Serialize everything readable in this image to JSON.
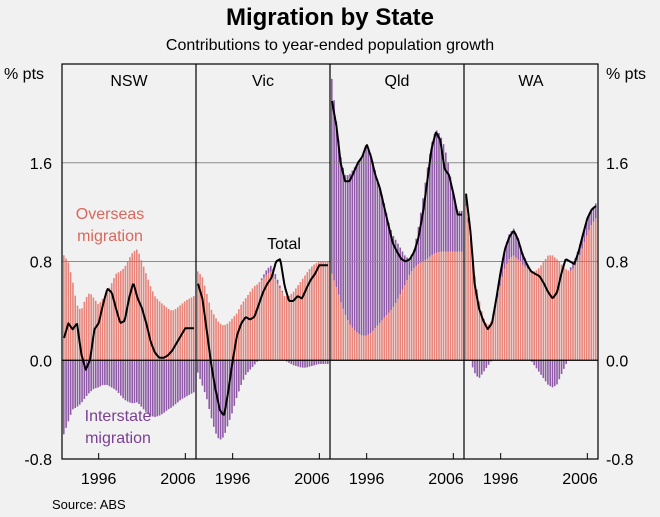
{
  "title": "Migration by State",
  "subtitle": "Contributions to year-ended population growth",
  "source": "Source: ABS",
  "colors": {
    "overseas": "#e8847a",
    "interstate": "#8e5aa6",
    "total": "#000000",
    "frame": "#000000",
    "grid": "#8c8c8c",
    "background": "#f1f1f1",
    "annot_overseas": "#d9675c",
    "annot_interstate": "#7a3f93"
  },
  "chart_data": {
    "type": "bar",
    "stacked": true,
    "title": "Migration by State",
    "subtitle": "Contributions to year-ended population growth",
    "ylabel_left": "% pts",
    "ylabel_right": "% pts",
    "ylim": [
      -0.8,
      2.4
    ],
    "y_ticks": [
      -0.8,
      0.0,
      0.8,
      1.6
    ],
    "y_tick_labels": [
      "-0.8",
      "0.0",
      "0.8",
      "1.6"
    ],
    "grid": true,
    "x_range": [
      1992,
      2007
    ],
    "annotations": {
      "overseas_label": "Overseas migration",
      "interstate_label": "Interstate migration",
      "total_label": "Total"
    },
    "panels": [
      {
        "name": "NSW",
        "x_tick_labels": [
          "1996",
          "2006"
        ],
        "x_ticks": [
          1996,
          2006
        ],
        "years": [
          1992.0,
          1992.5,
          1993.0,
          1993.5,
          1994.0,
          1994.5,
          1995.0,
          1995.5,
          1996.0,
          1996.5,
          1997.0,
          1997.5,
          1998.0,
          1998.5,
          1999.0,
          1999.5,
          2000.0,
          2000.5,
          2001.0,
          2001.5,
          2002.0,
          2002.5,
          2003.0,
          2003.5,
          2004.0,
          2004.5,
          2005.0,
          2005.5,
          2006.0,
          2006.5,
          2007.0
        ],
        "overseas": [
          0.85,
          0.8,
          0.65,
          0.45,
          0.4,
          0.5,
          0.55,
          0.5,
          0.45,
          0.5,
          0.55,
          0.62,
          0.7,
          0.72,
          0.75,
          0.82,
          0.88,
          0.9,
          0.8,
          0.7,
          0.6,
          0.52,
          0.48,
          0.45,
          0.42,
          0.4,
          0.42,
          0.45,
          0.48,
          0.5,
          0.52
        ],
        "interstate": [
          -0.6,
          -0.5,
          -0.4,
          -0.38,
          -0.35,
          -0.3,
          -0.26,
          -0.23,
          -0.22,
          -0.2,
          -0.2,
          -0.22,
          -0.24,
          -0.28,
          -0.32,
          -0.34,
          -0.35,
          -0.34,
          -0.38,
          -0.42,
          -0.45,
          -0.46,
          -0.45,
          -0.43,
          -0.4,
          -0.38,
          -0.35,
          -0.32,
          -0.3,
          -0.28,
          -0.26
        ],
        "total": [
          0.18,
          0.3,
          0.25,
          0.3,
          0.05,
          -0.08,
          0.0,
          0.25,
          0.3,
          0.45,
          0.58,
          0.55,
          0.42,
          0.3,
          0.32,
          0.5,
          0.63,
          0.5,
          0.42,
          0.3,
          0.15,
          0.06,
          0.02,
          0.02,
          0.04,
          0.08,
          0.14,
          0.2,
          0.26,
          0.26,
          0.26
        ]
      },
      {
        "name": "Vic",
        "x_tick_labels": [
          "1996",
          "2006"
        ],
        "x_ticks": [
          1996,
          2006
        ],
        "years": [
          1992.0,
          1992.5,
          1993.0,
          1993.5,
          1994.0,
          1994.5,
          1995.0,
          1995.5,
          1996.0,
          1996.5,
          1997.0,
          1997.5,
          1998.0,
          1998.5,
          1999.0,
          1999.5,
          2000.0,
          2000.5,
          2001.0,
          2001.5,
          2002.0,
          2002.5,
          2003.0,
          2003.5,
          2004.0,
          2004.5,
          2005.0,
          2005.5,
          2006.0,
          2006.5,
          2007.0
        ],
        "overseas": [
          0.72,
          0.68,
          0.55,
          0.42,
          0.35,
          0.3,
          0.28,
          0.3,
          0.34,
          0.38,
          0.45,
          0.5,
          0.55,
          0.6,
          0.62,
          0.66,
          0.7,
          0.72,
          0.65,
          0.58,
          0.52,
          0.52,
          0.55,
          0.6,
          0.65,
          0.7,
          0.75,
          0.78,
          0.8,
          0.8,
          0.8
        ],
        "interstate": [
          -0.1,
          -0.2,
          -0.3,
          -0.45,
          -0.58,
          -0.65,
          -0.62,
          -0.52,
          -0.42,
          -0.3,
          -0.2,
          -0.12,
          -0.08,
          -0.04,
          0.0,
          0.02,
          0.04,
          0.05,
          0.04,
          0.02,
          0.0,
          -0.02,
          -0.04,
          -0.05,
          -0.06,
          -0.06,
          -0.05,
          -0.04,
          -0.03,
          -0.03,
          -0.03
        ],
        "total": [
          0.62,
          0.5,
          0.25,
          -0.02,
          -0.23,
          -0.4,
          -0.45,
          -0.25,
          0.0,
          0.2,
          0.3,
          0.35,
          0.33,
          0.35,
          0.45,
          0.55,
          0.62,
          0.67,
          0.8,
          0.82,
          0.6,
          0.48,
          0.48,
          0.52,
          0.5,
          0.58,
          0.65,
          0.7,
          0.77,
          0.77,
          0.77
        ]
      },
      {
        "name": "Qld",
        "x_tick_labels": [
          "1996",
          "2006"
        ],
        "x_ticks": [
          1996,
          2006
        ],
        "years": [
          1992.0,
          1992.5,
          1993.0,
          1993.5,
          1994.0,
          1994.5,
          1995.0,
          1995.5,
          1996.0,
          1996.5,
          1997.0,
          1997.5,
          1998.0,
          1998.5,
          1999.0,
          1999.5,
          2000.0,
          2000.5,
          2001.0,
          2001.5,
          2002.0,
          2002.5,
          2003.0,
          2003.5,
          2004.0,
          2004.5,
          2005.0,
          2005.5,
          2006.0,
          2006.5,
          2007.0
        ],
        "overseas": [
          0.7,
          0.6,
          0.48,
          0.38,
          0.3,
          0.25,
          0.22,
          0.2,
          0.2,
          0.22,
          0.26,
          0.3,
          0.34,
          0.38,
          0.42,
          0.48,
          0.55,
          0.62,
          0.7,
          0.75,
          0.78,
          0.8,
          0.82,
          0.85,
          0.87,
          0.88,
          0.88,
          0.88,
          0.88,
          0.88,
          0.88
        ],
        "interstate": [
          1.58,
          1.35,
          1.18,
          1.12,
          1.2,
          1.3,
          1.38,
          1.45,
          1.55,
          1.45,
          1.28,
          1.1,
          0.95,
          0.75,
          0.6,
          0.48,
          0.35,
          0.22,
          0.12,
          0.15,
          0.3,
          0.5,
          0.72,
          0.9,
          1.0,
          0.95,
          0.85,
          0.7,
          0.45,
          0.33,
          0.33
        ],
        "total": [
          2.1,
          1.9,
          1.6,
          1.45,
          1.45,
          1.52,
          1.6,
          1.65,
          1.75,
          1.65,
          1.5,
          1.4,
          1.25,
          1.1,
          0.95,
          0.88,
          0.82,
          0.8,
          0.82,
          0.88,
          1.0,
          1.2,
          1.45,
          1.72,
          1.85,
          1.78,
          1.55,
          1.5,
          1.35,
          1.18,
          1.18
        ]
      },
      {
        "name": "WA",
        "x_tick_labels": [
          "1996",
          "2006"
        ],
        "x_ticks": [
          1996,
          2006
        ],
        "years": [
          1992.0,
          1992.5,
          1993.0,
          1993.5,
          1994.0,
          1994.5,
          1995.0,
          1995.5,
          1996.0,
          1996.5,
          1997.0,
          1997.5,
          1998.0,
          1998.5,
          1999.0,
          1999.5,
          2000.0,
          2000.5,
          2001.0,
          2001.5,
          2002.0,
          2002.5,
          2003.0,
          2003.5,
          2004.0,
          2004.5,
          2005.0,
          2005.5,
          2006.0,
          2006.5,
          2007.0
        ],
        "overseas": [
          1.25,
          1.0,
          0.7,
          0.5,
          0.35,
          0.28,
          0.32,
          0.45,
          0.62,
          0.75,
          0.82,
          0.85,
          0.82,
          0.78,
          0.75,
          0.72,
          0.72,
          0.75,
          0.8,
          0.85,
          0.85,
          0.82,
          0.78,
          0.74,
          0.72,
          0.75,
          0.82,
          0.92,
          1.02,
          1.1,
          1.15
        ],
        "interstate": [
          0.08,
          0.0,
          -0.1,
          -0.15,
          -0.1,
          -0.05,
          0.0,
          0.05,
          0.1,
          0.15,
          0.2,
          0.22,
          0.18,
          0.1,
          0.05,
          0.0,
          -0.05,
          -0.1,
          -0.15,
          -0.2,
          -0.22,
          -0.2,
          -0.12,
          -0.04,
          0.02,
          0.05,
          0.08,
          0.1,
          0.12,
          0.12,
          0.12
        ],
        "total": [
          1.35,
          1.05,
          0.62,
          0.42,
          0.32,
          0.25,
          0.3,
          0.5,
          0.72,
          0.9,
          1.0,
          1.05,
          0.98,
          0.86,
          0.78,
          0.72,
          0.7,
          0.68,
          0.62,
          0.55,
          0.5,
          0.55,
          0.7,
          0.82,
          0.8,
          0.78,
          0.88,
          1.02,
          1.15,
          1.22,
          1.25
        ]
      }
    ]
  }
}
